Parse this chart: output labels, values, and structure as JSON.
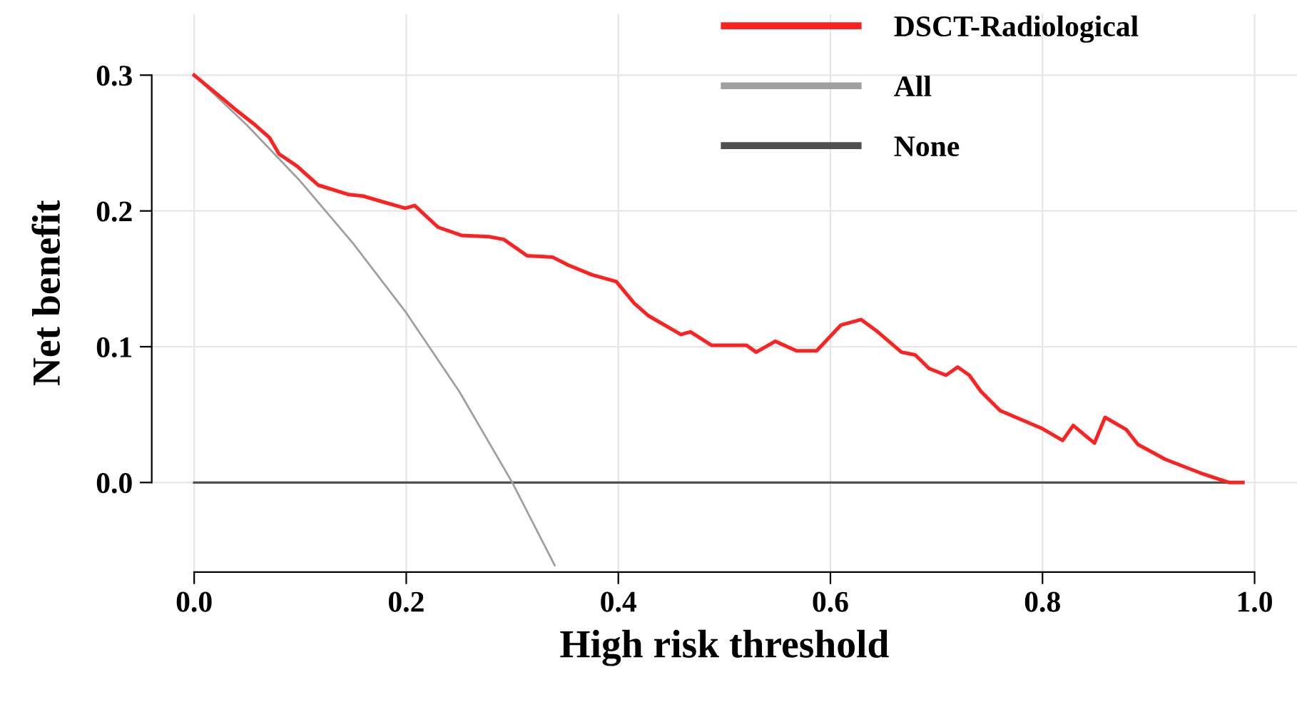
{
  "chart_data": {
    "type": "line",
    "xlabel": "High risk threshold",
    "ylabel": "Net benefit",
    "xlim": [
      -0.04,
      1.04
    ],
    "ylim": [
      -0.066,
      0.345
    ],
    "xticks": [
      {
        "value": 0,
        "label": "0.0"
      },
      0.2,
      0.4,
      0.6,
      0.8,
      {
        "value": 1,
        "label": "1.0"
      }
    ],
    "yticks": [
      {
        "value": 0,
        "label": "0.0"
      },
      0.1,
      0.2,
      0.3
    ],
    "grid": true,
    "legend": "top right",
    "line_style": "solid",
    "marker": "none",
    "series": [
      {
        "name": "DSCT-Radiological",
        "color": "#ff2020",
        "x": [
          0,
          0.031,
          0.04,
          0.058,
          0.071,
          0.08,
          0.097,
          0.117,
          0.146,
          0.159,
          0.181,
          0.199,
          0.208,
          0.23,
          0.252,
          0.278,
          0.292,
          0.314,
          0.338,
          0.353,
          0.375,
          0.398,
          0.415,
          0.428,
          0.459,
          0.468,
          0.488,
          0.521,
          0.53,
          0.548,
          0.568,
          0.587,
          0.61,
          0.629,
          0.643,
          0.667,
          0.68,
          0.693,
          0.709,
          0.72,
          0.731,
          0.742,
          0.76,
          0.799,
          0.819,
          0.829,
          0.849,
          0.859,
          0.879,
          0.89,
          0.916,
          0.949,
          0.976,
          0.989
        ],
        "values": [
          0.3,
          0.28,
          0.274,
          0.263,
          0.254,
          0.242,
          0.233,
          0.219,
          0.212,
          0.211,
          0.206,
          0.202,
          0.204,
          0.188,
          0.182,
          0.181,
          0.179,
          0.167,
          0.166,
          0.16,
          0.153,
          0.148,
          0.132,
          0.123,
          0.109,
          0.111,
          0.101,
          0.101,
          0.096,
          0.104,
          0.097,
          0.097,
          0.116,
          0.12,
          0.112,
          0.096,
          0.094,
          0.084,
          0.079,
          0.085,
          0.079,
          0.067,
          0.053,
          0.04,
          0.031,
          0.042,
          0.029,
          0.048,
          0.039,
          0.028,
          0.017,
          0.007,
          0.0,
          0.0
        ]
      },
      {
        "name": "All",
        "color": "#a0a0a0",
        "x": [
          0,
          0.05,
          0.1,
          0.15,
          0.2,
          0.25,
          0.3,
          0.34
        ],
        "values": [
          0.3,
          0.263,
          0.222,
          0.176,
          0.125,
          0.067,
          0.0,
          -0.061
        ]
      },
      {
        "name": "None",
        "color": "#505050",
        "x": [
          0,
          0.989
        ],
        "values": [
          0.0,
          0.0
        ]
      }
    ]
  }
}
